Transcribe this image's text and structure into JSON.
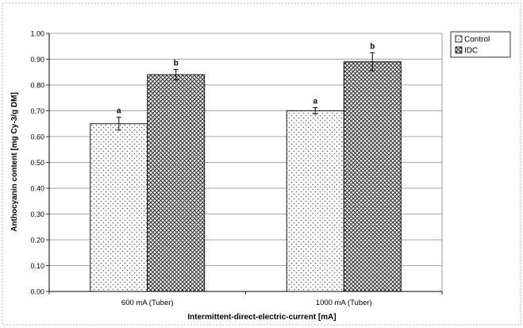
{
  "colors": {
    "control_fill": "#ffffff",
    "control_dots": "#555555",
    "idc_fill": "#ffffff",
    "idc_hatch": "#333333",
    "bar_edge": "#000000",
    "gridline": "#888888"
  },
  "chart_data": {
    "type": "bar",
    "title": "",
    "xlabel": "Intermittent-direct-electric-current [mA]",
    "ylabel": "Anthocyanin content [mg Cy-3/g DM]",
    "categories": [
      "600 mA (Tuber)",
      "1000 mA (Tuber)"
    ],
    "series": [
      {
        "name": "Control",
        "values": [
          0.65,
          0.7
        ],
        "errors": [
          0.025,
          0.012
        ],
        "labels": [
          "a",
          "a"
        ],
        "pattern": "dots"
      },
      {
        "name": "IDC",
        "values": [
          0.84,
          0.89
        ],
        "errors": [
          0.02,
          0.035
        ],
        "labels": [
          "b",
          "b"
        ],
        "pattern": "crosshatch"
      }
    ],
    "ylim": [
      0,
      1.0
    ],
    "yticks": [
      "0.00",
      "0.10",
      "0.20",
      "0.30",
      "0.40",
      "0.50",
      "0.60",
      "0.70",
      "0.80",
      "0.90",
      "1.00"
    ],
    "grid": true,
    "legend_position": "top-right"
  }
}
